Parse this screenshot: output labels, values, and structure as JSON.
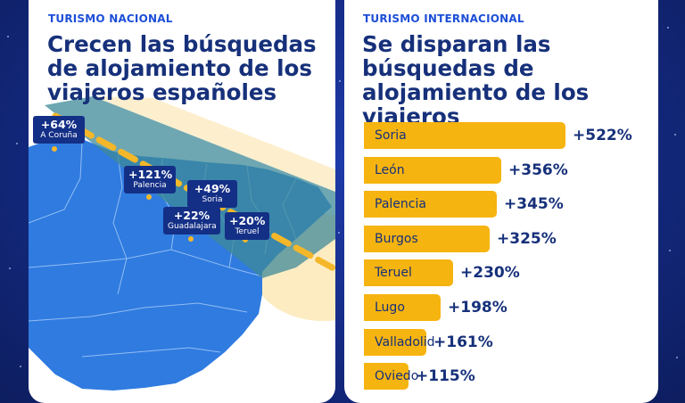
{
  "national": {
    "kicker": "TURISMO NACIONAL",
    "title": "Crecen las búsquedas de alojamiento de los viajeros españoles",
    "labels": [
      {
        "pct": "+64%",
        "city": "A Coruña"
      },
      {
        "pct": "+121%",
        "city": "Palencia"
      },
      {
        "pct": "+49%",
        "city": "Soria"
      },
      {
        "pct": "+22%",
        "city": "Guadalajara"
      },
      {
        "pct": "+20%",
        "city": "Teruel"
      }
    ]
  },
  "international": {
    "kicker": "TURISMO INTERNACIONAL",
    "title": "Se disparan las búsquedas de alojamiento de los viajeros internacionales"
  },
  "colors": {
    "bar": "#f6b410",
    "navy": "#16307a",
    "map_land": "#2f7be0",
    "map_band": "#3d8a98",
    "dash": "#f5b72a",
    "label_box": "#142f86"
  },
  "chart_data": {
    "type": "bar",
    "orientation": "horizontal",
    "categories": [
      "Soria",
      "León",
      "Palencia",
      "Burgos",
      "Teruel",
      "Lugo",
      "Valladolid",
      "Oviedo"
    ],
    "values": [
      522,
      356,
      345,
      325,
      230,
      198,
      161,
      115
    ],
    "value_labels": [
      "+522%",
      "+356%",
      "+345%",
      "+325%",
      "+230%",
      "+198%",
      "+161%",
      "+115%"
    ],
    "title": "Se disparan las búsquedas de alojamiento de los viajeros internacionales"
  }
}
